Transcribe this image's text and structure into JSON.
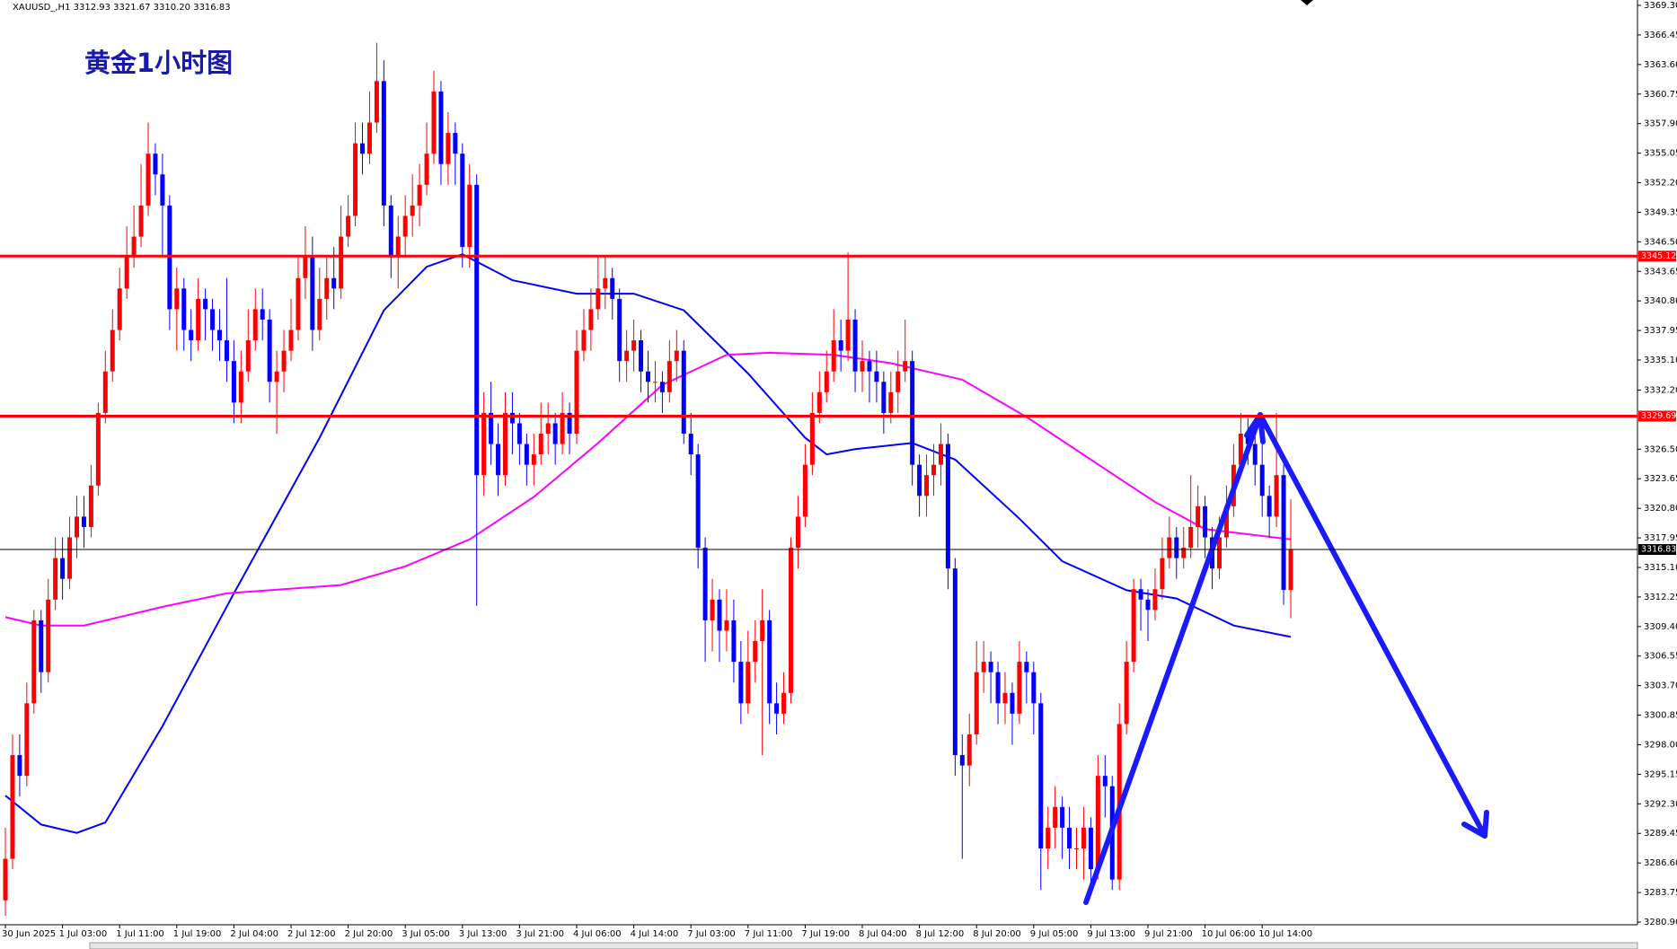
{
  "chart_data": {
    "type": "candlestick",
    "header": "XAUUSD_,H1  3312.93 3321.67 3310.20 3316.83",
    "title": "黄金1小时图",
    "up_color": "#ff0000",
    "down_color": "#0000ff",
    "ylim": [
      3280.9,
      3369.3
    ],
    "xlim": [
      0,
      180
    ],
    "yticks": [
      {
        "value": 3369.3,
        "label": "3369.30"
      },
      {
        "value": 3366.45,
        "label": "3366.45"
      },
      {
        "value": 3363.6,
        "label": "3363.60"
      },
      {
        "value": 3360.75,
        "label": "3360.75"
      },
      {
        "value": 3357.9,
        "label": "3357.90"
      },
      {
        "value": 3355.05,
        "label": "3355.05"
      },
      {
        "value": 3352.2,
        "label": "3352.20"
      },
      {
        "value": 3349.35,
        "label": "3349.35"
      },
      {
        "value": 3346.5,
        "label": "3346.50"
      },
      {
        "value": 3343.65,
        "label": "3343.65"
      },
      {
        "value": 3340.8,
        "label": "3340.80"
      },
      {
        "value": 3337.95,
        "label": "3337.95"
      },
      {
        "value": 3335.1,
        "label": "3335.10"
      },
      {
        "value": 3332.2,
        "label": "3332.20"
      },
      {
        "value": 3326.5,
        "label": "3326.50"
      },
      {
        "value": 3323.65,
        "label": "3323.65"
      },
      {
        "value": 3320.8,
        "label": "3320.80"
      },
      {
        "value": 3317.95,
        "label": "3317.95"
      },
      {
        "value": 3315.1,
        "label": "3315.10"
      },
      {
        "value": 3312.25,
        "label": "3312.25"
      },
      {
        "value": 3309.4,
        "label": "3309.40"
      },
      {
        "value": 3306.55,
        "label": "3306.55"
      },
      {
        "value": 3303.7,
        "label": "3303.70"
      },
      {
        "value": 3300.85,
        "label": "3300.85"
      },
      {
        "value": 3298,
        "label": "3298.00"
      },
      {
        "value": 3295.15,
        "label": "3295.15"
      },
      {
        "value": 3292.3,
        "label": "3292.30"
      },
      {
        "value": 3289.45,
        "label": "3289.45"
      },
      {
        "value": 3286.6,
        "label": "3286.60"
      },
      {
        "value": 3283.75,
        "label": "3283.75"
      },
      {
        "value": 3280.9,
        "label": "3280.90"
      }
    ],
    "xticks": [
      {
        "value": 0,
        "label": "30 Jun 2025"
      },
      {
        "value": 8,
        "label": "1 Jul 03:00"
      },
      {
        "value": 16,
        "label": "1 Jul 11:00"
      },
      {
        "value": 24,
        "label": "1 Jul 19:00"
      },
      {
        "value": 32,
        "label": "2 Jul 04:00"
      },
      {
        "value": 40,
        "label": "2 Jul 12:00"
      },
      {
        "value": 48,
        "label": "2 Jul 20:00"
      },
      {
        "value": 56,
        "label": "3 Jul 05:00"
      },
      {
        "value": 64,
        "label": "3 Jul 13:00"
      },
      {
        "value": 72,
        "label": "3 Jul 21:00"
      },
      {
        "value": 80,
        "label": "4 Jul 06:00"
      },
      {
        "value": 88,
        "label": "4 Jul 14:00"
      },
      {
        "value": 96,
        "label": "7 Jul 03:00"
      },
      {
        "value": 104,
        "label": "7 Jul 11:00"
      },
      {
        "value": 112,
        "label": "7 Jul 19:00"
      },
      {
        "value": 120,
        "label": "8 Jul 04:00"
      },
      {
        "value": 128,
        "label": "8 Jul 12:00"
      },
      {
        "value": 136,
        "label": "8 Jul 20:00"
      },
      {
        "value": 144,
        "label": "9 Jul 05:00"
      },
      {
        "value": 152,
        "label": "9 Jul 13:00"
      },
      {
        "value": 160,
        "label": "9 Jul 21:00"
      },
      {
        "value": 168,
        "label": "10 Jul 06:00"
      },
      {
        "value": 176,
        "label": "10 Jul 14:00"
      }
    ],
    "hlines": [
      {
        "value": 3345.12,
        "color": "#ff0000"
      },
      {
        "value": 3329.69,
        "color": "#ff0000"
      },
      {
        "value": 3316.83,
        "color": "#000000"
      }
    ],
    "ma": [
      {
        "color": "#0000ff",
        "x": [
          0,
          5,
          10,
          14,
          22,
          32,
          44,
          53,
          59,
          64,
          71,
          80,
          88,
          95,
          104,
          112,
          115,
          119,
          127,
          133,
          142,
          148,
          157,
          164,
          172,
          180
        ],
        "values": [
          3293.1,
          3290.3,
          3289.5,
          3290.5,
          3299.8,
          3312.6,
          3327.6,
          3339.9,
          3344.1,
          3345.3,
          3342.8,
          3341.5,
          3341.5,
          3339.9,
          3333.8,
          3327.6,
          3326.0,
          3326.5,
          3327.1,
          3325.5,
          3319.8,
          3315.7,
          3312.9,
          3312.1,
          3309.5,
          3308.4
        ]
      },
      {
        "color": "#ff00ff",
        "x": [
          0,
          5,
          11,
          22,
          31,
          47,
          56,
          65,
          74,
          83,
          92,
          101,
          107,
          116,
          124,
          134,
          143,
          152,
          161,
          168,
          180
        ],
        "values": [
          3310.3,
          3309.5,
          3309.5,
          3311.3,
          3312.6,
          3313.4,
          3315.2,
          3317.8,
          3321.9,
          3327.1,
          3332.7,
          3335.6,
          3335.8,
          3335.6,
          3334.8,
          3333.2,
          3329.6,
          3325.5,
          3321.4,
          3318.8,
          3317.8
        ]
      }
    ],
    "open": [
      3283,
      3287,
      3297,
      3295,
      3302,
      3310,
      3305,
      3312,
      3316,
      3314,
      3318,
      3320,
      3319,
      3323,
      3330,
      3334,
      3338,
      3342,
      3345,
      3347,
      3350,
      3355,
      3353,
      3350,
      3340,
      3342,
      3338,
      3337,
      3341,
      3340,
      3338,
      3337,
      3335,
      3331,
      3334,
      3337,
      3340,
      3339,
      3333,
      3334,
      3336,
      3338,
      3343,
      3345,
      3338,
      3341,
      3343,
      3342,
      3347,
      3349,
      3356,
      3355,
      3358,
      3362,
      3350,
      3345,
      3347,
      3349,
      3350,
      3352,
      3355,
      3361,
      3354,
      3357,
      3355,
      3346,
      3352,
      3324,
      3330,
      3327,
      3324,
      3330,
      3329,
      3327,
      3325,
      3326,
      3328,
      3329,
      3327,
      3330,
      3328,
      3336,
      3338,
      3340,
      3342,
      3343,
      3341,
      3335,
      3336,
      3337,
      3334,
      3333,
      3333,
      3332,
      3335,
      3336,
      3328,
      3326,
      3317,
      3310,
      3312,
      3309,
      3310,
      3306,
      3302,
      3306,
      3308,
      3310,
      3302,
      3301,
      3303,
      3317,
      3320,
      3325,
      3330,
      3332,
      3334,
      3337,
      3336,
      3339,
      3334,
      3335,
      3334,
      3333,
      3330,
      3332,
      3334,
      3335,
      3325,
      3322,
      3324,
      3325,
      3327,
      3315,
      3297,
      3296,
      3299,
      3305,
      3306,
      3305,
      3302,
      3303,
      3301,
      3306,
      3305,
      3302,
      3288,
      3290,
      3292,
      3290,
      3288,
      3288,
      3290,
      3286,
      3295,
      3294,
      3285,
      3300,
      3306,
      3313,
      3312,
      3311,
      3313,
      3316,
      3318,
      3316,
      3317,
      3319,
      3321,
      3318,
      3315,
      3318,
      3321,
      3325,
      3328,
      3327,
      3325,
      3322,
      3320,
      3324,
      3312.93
    ],
    "high": [
      3290,
      3299,
      3299,
      3304,
      3311,
      3311,
      3314,
      3318,
      3318,
      3320,
      3322,
      3322,
      3325,
      3331,
      3336,
      3340,
      3344,
      3348,
      3350,
      3354,
      3358,
      3356,
      3355,
      3351,
      3344,
      3343,
      3340,
      3343,
      3342,
      3341,
      3340,
      3343,
      3337,
      3336,
      3340,
      3342,
      3342,
      3340,
      3336,
      3338,
      3341,
      3345,
      3348,
      3347,
      3344,
      3345,
      3346,
      3350,
      3351,
      3358,
      3358,
      3361,
      3365.7,
      3364,
      3351,
      3349,
      3351,
      3353,
      3354,
      3358,
      3363,
      3362,
      3359,
      3358,
      3356,
      3354,
      3353,
      3332,
      3333,
      3329,
      3332,
      3332,
      3330,
      3328,
      3328,
      3331,
      3331,
      3330,
      3332,
      3331,
      3338,
      3340,
      3342,
      3345,
      3345,
      3344,
      3342,
      3338,
      3339,
      3338,
      3336,
      3335,
      3334,
      3337,
      3338,
      3337,
      3330,
      3327,
      3318,
      3314,
      3313,
      3313,
      3312,
      3308,
      3309,
      3310,
      3313,
      3311,
      3304,
      3305,
      3318,
      3322,
      3327,
      3332,
      3334,
      3336,
      3340,
      3339,
      3345.5,
      3340,
      3337,
      3336,
      3336,
      3334,
      3334,
      3336,
      3339,
      3336,
      3326,
      3326,
      3327,
      3329,
      3328,
      3316,
      3299,
      3301,
      3308,
      3308,
      3307,
      3306,
      3305,
      3304,
      3308,
      3307,
      3306,
      3303,
      3292,
      3294,
      3293,
      3292,
      3290,
      3292,
      3291,
      3297,
      3297,
      3295,
      3302,
      3308,
      3314,
      3314,
      3313,
      3315,
      3318,
      3320,
      3319,
      3319,
      3324,
      3323,
      3322,
      3319,
      3320,
      3323,
      3327,
      3330,
      3329.5,
      3328,
      3327,
      3323,
      3330,
      3325,
      3321.67
    ],
    "low": [
      3281.5,
      3286,
      3293,
      3294,
      3301,
      3303,
      3304,
      3311,
      3312,
      3313,
      3316,
      3317,
      3318,
      3322,
      3329,
      3333,
      3337,
      3341,
      3344,
      3346,
      3349,
      3351,
      3345,
      3338,
      3336,
      3336,
      3335,
      3336,
      3337,
      3336,
      3335,
      3333,
      3329,
      3329,
      3333,
      3336,
      3337,
      3331,
      3328,
      3332,
      3335,
      3337,
      3341,
      3336,
      3337,
      3339,
      3340,
      3341,
      3346,
      3348,
      3353,
      3354,
      3357,
      3348,
      3343,
      3342,
      3345,
      3347,
      3348,
      3351,
      3354,
      3352,
      3352,
      3352,
      3344,
      3344,
      3311.4,
      3322,
      3325,
      3322,
      3323,
      3326,
      3325,
      3323,
      3323,
      3325,
      3326,
      3325,
      3326,
      3326,
      3327,
      3335,
      3336,
      3339,
      3340,
      3339,
      3333,
      3333,
      3334,
      3332,
      3331,
      3331,
      3330,
      3331,
      3333,
      3327,
      3324,
      3315,
      3306,
      3307,
      3306,
      3307,
      3304,
      3300,
      3301,
      3304,
      3297,
      3300,
      3299,
      3300,
      3302,
      3315,
      3319,
      3324,
      3329,
      3331,
      3333,
      3334,
      3335,
      3332,
      3332,
      3331,
      3331,
      3328,
      3329,
      3330,
      3333,
      3323,
      3320,
      3320,
      3322,
      3323,
      3313,
      3295,
      3287,
      3294,
      3298,
      3303,
      3302,
      3300,
      3300,
      3298,
      3300,
      3302,
      3299,
      3284,
      3286,
      3288,
      3287,
      3286,
      3286,
      3285,
      3283.5,
      3285,
      3291,
      3284,
      3284,
      3299,
      3305,
      3309,
      3308,
      3310,
      3312,
      3315,
      3314,
      3315,
      3316,
      3317,
      3316,
      3313,
      3314,
      3317,
      3320,
      3324,
      3325,
      3323,
      3320,
      3318,
      3319,
      3311.5,
      3310.2
    ],
    "close": [
      3287,
      3297,
      3295,
      3302,
      3310,
      3305,
      3312,
      3316,
      3314,
      3318,
      3320,
      3319,
      3323,
      3330,
      3334,
      3338,
      3342,
      3345,
      3347,
      3350,
      3355,
      3353,
      3350,
      3340,
      3342,
      3338,
      3337,
      3341,
      3340,
      3338,
      3337,
      3335,
      3331,
      3334,
      3337,
      3340,
      3339,
      3333,
      3334,
      3336,
      3338,
      3343,
      3345,
      3338,
      3341,
      3343,
      3342,
      3347,
      3349,
      3356,
      3355,
      3358,
      3362,
      3350,
      3345,
      3347,
      3349,
      3350,
      3352,
      3355,
      3361,
      3354,
      3357,
      3355,
      3346,
      3352,
      3324,
      3330,
      3327,
      3324,
      3330,
      3329,
      3327,
      3325,
      3326,
      3328,
      3329,
      3327,
      3330,
      3328,
      3336,
      3338,
      3340,
      3342,
      3343,
      3341,
      3335,
      3336,
      3337,
      3334,
      3333,
      3333,
      3332,
      3335,
      3336,
      3328,
      3326,
      3317,
      3310,
      3312,
      3309,
      3310,
      3306,
      3302,
      3306,
      3308,
      3310,
      3302,
      3301,
      3303,
      3317,
      3320,
      3325,
      3330,
      3332,
      3334,
      3337,
      3336,
      3339,
      3334,
      3335,
      3334,
      3333,
      3330,
      3332,
      3334,
      3335,
      3325,
      3322,
      3324,
      3325,
      3327,
      3315,
      3297,
      3296,
      3299,
      3305,
      3306,
      3305,
      3302,
      3303,
      3301,
      3306,
      3305,
      3302,
      3288,
      3290,
      3292,
      3290,
      3288,
      3288,
      3290,
      3286,
      3295,
      3294,
      3285,
      3300,
      3306,
      3313,
      3312,
      3311,
      3313,
      3316,
      3318,
      3316,
      3317,
      3319,
      3321,
      3318,
      3315,
      3318,
      3321,
      3325,
      3328,
      3327,
      3325,
      3322,
      3320,
      3324,
      3312.93,
      3316.83
    ]
  }
}
